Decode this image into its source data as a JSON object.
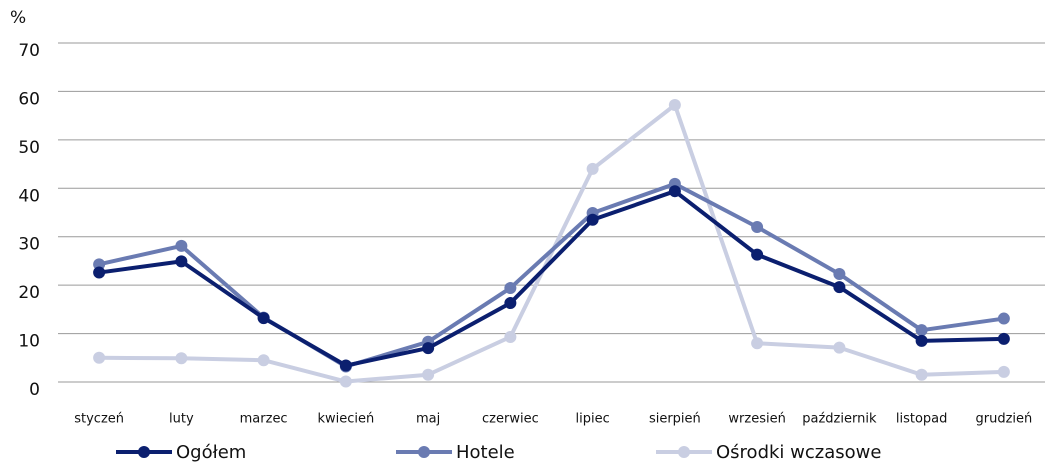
{
  "chart_data": {
    "type": "line",
    "y_label": "%",
    "categories": [
      "styczeń",
      "luty",
      "marzec",
      "kwiecień",
      "maj",
      "czerwiec",
      "lipiec",
      "sierpień",
      "wrzesień",
      "październik",
      "listopad",
      "grudzień"
    ],
    "series": [
      {
        "name": "Ogółem",
        "color": "#0b1f6f",
        "values": [
          22.6,
          24.9,
          13.2,
          3.4,
          7.0,
          16.3,
          33.5,
          39.4,
          26.3,
          19.6,
          8.5,
          8.9
        ]
      },
      {
        "name": "Hotele",
        "color": "#6a7bb2",
        "values": [
          24.3,
          28.1,
          13.3,
          3.2,
          8.3,
          19.4,
          34.9,
          40.9,
          32.0,
          22.3,
          10.7,
          13.1
        ]
      },
      {
        "name": "Ośrodki wczasowe",
        "color": "#c9cee2",
        "values": [
          5.0,
          4.9,
          4.5,
          0.1,
          1.5,
          9.3,
          44.0,
          57.2,
          8.0,
          7.1,
          1.5,
          2.1
        ]
      }
    ],
    "ylim": [
      0,
      70
    ],
    "yticks": [
      0,
      10,
      20,
      30,
      40,
      50,
      60,
      70
    ],
    "grid": true,
    "legend": "bottom"
  }
}
